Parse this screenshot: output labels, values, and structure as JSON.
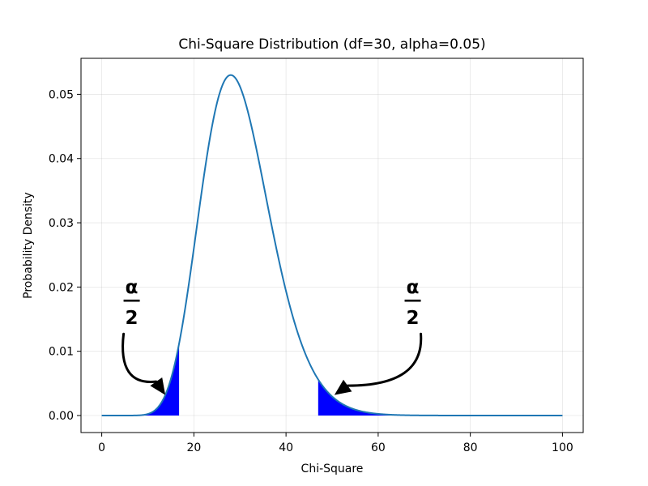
{
  "chart_data": {
    "type": "line",
    "title": "Chi-Square Distribution (df=30, alpha=0.05)",
    "xlabel": "Chi-Square",
    "ylabel": "Probability Density",
    "df": 30,
    "alpha": 0.05,
    "xlim": [
      -4.5,
      104.5
    ],
    "ylim": [
      -0.00265,
      0.0556
    ],
    "xticks": [
      0,
      20,
      40,
      60,
      80,
      100
    ],
    "yticks": [
      0.0,
      0.01,
      0.02,
      0.03,
      0.04,
      0.05
    ],
    "xtick_labels": [
      "0",
      "20",
      "40",
      "60",
      "80",
      "100"
    ],
    "ytick_labels": [
      "0.00",
      "0.01",
      "0.02",
      "0.03",
      "0.04",
      "0.05"
    ],
    "grid": true,
    "series": [
      {
        "color": "#1f77b4",
        "x_range": [
          0,
          100
        ]
      }
    ],
    "shaded_regions": [
      {
        "from": 0,
        "to": 16.79,
        "color": "#0000ff"
      },
      {
        "from": 46.98,
        "to": 100,
        "color": "#0000ff"
      }
    ],
    "annotations": [
      {
        "numerator": "α",
        "denominator": "2",
        "text_x": 6.5,
        "text_y": 0.018,
        "arrow_to_x": 13.8,
        "arrow_to_y": 0.0032
      },
      {
        "numerator": "α",
        "denominator": "2",
        "text_x": 67.5,
        "text_y": 0.018,
        "arrow_to_x": 50.5,
        "arrow_to_y": 0.0032
      }
    ]
  }
}
